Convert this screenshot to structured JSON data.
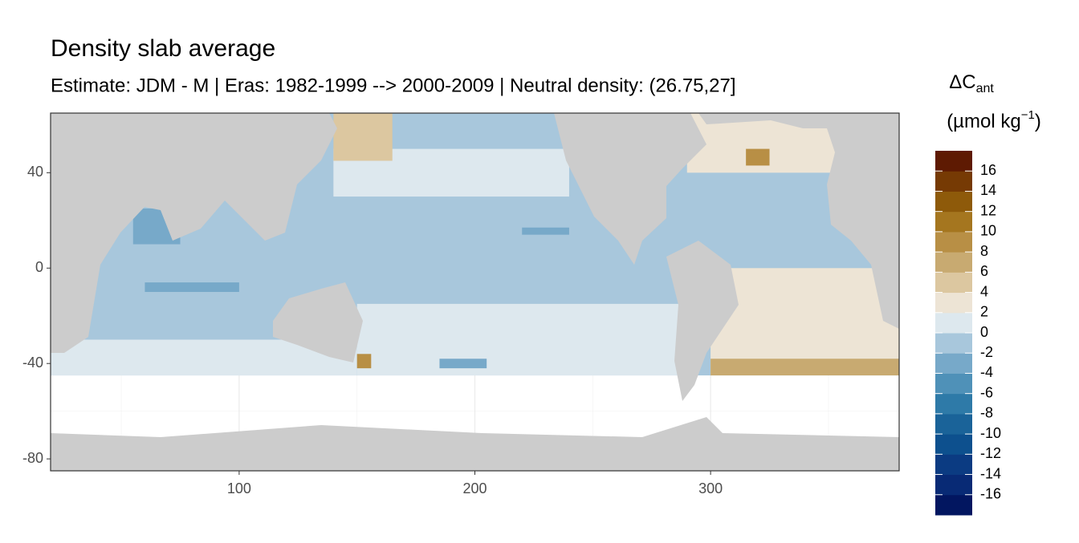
{
  "chart_data": {
    "type": "map",
    "title": "Density slab average",
    "subtitle": "Estimate: JDM - M | Eras: 1982-1999 --> 2000-2009 | Neutral density: (26.75,27]",
    "xlim": [
      20,
      380
    ],
    "ylim": [
      -85,
      65
    ],
    "xticks": [
      100,
      200,
      300
    ],
    "yticks": [
      -80,
      -40,
      0,
      40
    ],
    "xminor": [
      50,
      150,
      250,
      350
    ],
    "yminor": [
      -60,
      -20,
      20,
      60
    ],
    "grid": true,
    "patches": [
      {
        "lon": [
          20,
          380
        ],
        "lat": [
          -45,
          65
        ],
        "value": -1
      },
      {
        "lon": [
          150,
          290
        ],
        "lat": [
          -45,
          -15
        ],
        "value": 1
      },
      {
        "lon": [
          140,
          240
        ],
        "lat": [
          30,
          50
        ],
        "value": 1
      },
      {
        "lon": [
          20,
          150
        ],
        "lat": [
          -45,
          -30
        ],
        "value": 1
      },
      {
        "lon": [
          290,
          360
        ],
        "lat": [
          40,
          65
        ],
        "value": 3
      },
      {
        "lon": [
          300,
          380
        ],
        "lat": [
          -45,
          0
        ],
        "value": 2
      },
      {
        "lon": [
          300,
          380
        ],
        "lat": [
          -45,
          -38
        ],
        "value": 7
      },
      {
        "lon": [
          140,
          165
        ],
        "lat": [
          45,
          65
        ],
        "value": 5
      },
      {
        "lon": [
          150,
          156
        ],
        "lat": [
          -42,
          -36
        ],
        "value": 9
      },
      {
        "lon": [
          55,
          75
        ],
        "lat": [
          10,
          25
        ],
        "value": -3
      },
      {
        "lon": [
          220,
          240
        ],
        "lat": [
          14,
          17
        ],
        "value": -3
      },
      {
        "lon": [
          60,
          100
        ],
        "lat": [
          -10,
          -6
        ],
        "value": -3
      },
      {
        "lon": [
          315,
          325
        ],
        "lat": [
          43,
          50
        ],
        "value": 9
      },
      {
        "lon": [
          185,
          205
        ],
        "lat": [
          -42,
          -38
        ],
        "value": -3
      }
    ],
    "legend_title": "ΔC",
    "legend_title_sub": "ant",
    "legend_unit": "(µmol kg",
    "legend_unit_sup": "−1",
    "legend_unit_end": ")",
    "clim": [
      -18,
      18
    ],
    "colors": [
      "#021660",
      "#082a75",
      "#0b3b82",
      "#0d508e",
      "#1a6399",
      "#2e7aa8",
      "#4f91b8",
      "#77a9c9",
      "#a8c7dc",
      "#dde8ee",
      "#ede4d5",
      "#dcc7a0",
      "#c8aa71",
      "#b88f45",
      "#a5761f",
      "#8e5a0a",
      "#763a04",
      "#5e1a02"
    ],
    "cticks": [
      -16,
      -14,
      -12,
      -10,
      -8,
      -6,
      -4,
      -2,
      0,
      2,
      4,
      6,
      8,
      10,
      12,
      14,
      16
    ]
  }
}
